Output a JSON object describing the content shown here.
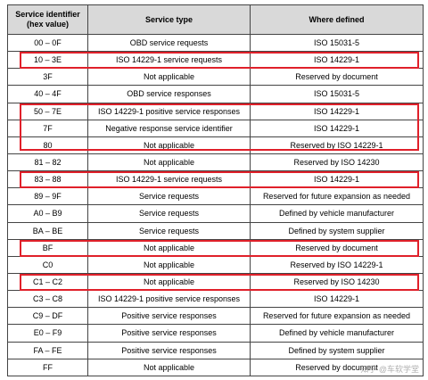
{
  "table": {
    "header": [
      "Service identifier (hex value)",
      "Service type",
      "Where defined"
    ],
    "rows": [
      [
        "00 – 0F",
        "OBD service requests",
        "ISO 15031-5"
      ],
      [
        "10 – 3E",
        "ISO 14229-1 service requests",
        "ISO 14229-1"
      ],
      [
        "3F",
        "Not applicable",
        "Reserved by document"
      ],
      [
        "40 – 4F",
        "OBD service responses",
        "ISO 15031-5"
      ],
      [
        "50 – 7E",
        "ISO 14229-1 positive service responses",
        "ISO 14229-1"
      ],
      [
        "7F",
        "Negative response service identifier",
        "ISO 14229-1"
      ],
      [
        "80",
        "Not applicable",
        "Reserved by ISO 14229-1"
      ],
      [
        "81 – 82",
        "Not applicable",
        "Reserved by ISO 14230"
      ],
      [
        "83 – 88",
        "ISO 14229-1 service requests",
        "ISO 14229-1"
      ],
      [
        "89 – 9F",
        "Service requests",
        "Reserved for future expansion as needed"
      ],
      [
        "A0 – B9",
        "Service requests",
        "Defined by vehicle manufacturer"
      ],
      [
        "BA – BE",
        "Service requests",
        "Defined by system supplier"
      ],
      [
        "BF",
        "Not applicable",
        "Reserved by document"
      ],
      [
        "C0",
        "Not applicable",
        "Reserved by ISO 14229-1"
      ],
      [
        "C1 – C2",
        "Not applicable",
        "Reserved by ISO 14230"
      ],
      [
        "C3 – C8",
        "ISO 14229-1 positive service responses",
        "ISO 14229-1"
      ],
      [
        "C9 – DF",
        "Positive service responses",
        "Reserved for future expansion as needed"
      ],
      [
        "E0 – F9",
        "Positive service responses",
        "Defined by vehicle manufacturer"
      ],
      [
        "FA – FE",
        "Positive service responses",
        "Defined by system supplier"
      ],
      [
        "FF",
        "Not applicable",
        "Reserved by document"
      ]
    ]
  },
  "watermark": "知乎 @车软学堂"
}
